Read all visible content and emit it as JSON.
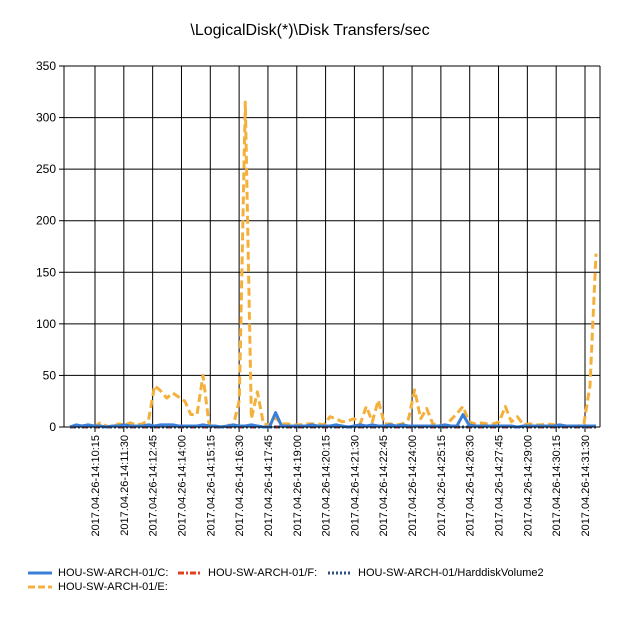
{
  "chart_data": {
    "type": "line",
    "title": "\\LogicalDisk(*)\\Disk Transfers/sec",
    "xlabel": "",
    "ylabel": "",
    "ylim": [
      0,
      350
    ],
    "yticks": [
      0,
      50,
      100,
      150,
      200,
      250,
      300,
      350
    ],
    "grid": true,
    "legend_position": "bottom",
    "x_tick_labels": [
      "2017.04.26-14:10:15",
      "2017.04.26-14:11:30",
      "2017.04.26-14:12:45",
      "2017.04.26-14:14:00",
      "2017.04.26-14:15:15",
      "2017.04.26-14:16:30",
      "2017.04.26-14:17:45",
      "2017.04.26-14:19:00",
      "2017.04.26-14:20:15",
      "2017.04.26-14:21:30",
      "2017.04.26-14:22:45",
      "2017.04.26-14:24:00",
      "2017.04.26-14:25:15",
      "2017.04.26-14:26:30",
      "2017.04.26-14:27:45",
      "2017.04.26-14:29:00",
      "2017.04.26-14:30:15",
      "2017.04.26-14:31:30"
    ],
    "series": [
      {
        "name": "HOU-SW-ARCH-01/C:",
        "color": "#3b7fd9",
        "dash": "solid",
        "values": [
          0,
          2,
          1,
          2,
          1,
          1,
          0,
          1,
          1,
          2,
          1,
          1,
          1,
          2,
          1,
          2,
          2,
          2,
          1,
          1,
          1,
          1,
          2,
          1,
          1,
          0,
          1,
          2,
          1,
          1,
          2,
          1,
          0,
          0,
          14,
          1,
          1,
          1,
          1,
          1,
          2,
          1,
          1,
          1,
          2,
          1,
          0,
          1,
          2,
          1,
          2,
          1,
          1,
          2,
          1,
          2,
          1,
          1,
          1,
          1,
          1,
          1,
          2,
          1,
          1,
          12,
          2,
          1,
          1,
          1,
          1,
          1,
          1,
          1,
          0,
          1,
          1,
          1,
          1,
          1,
          1,
          2,
          1,
          1,
          1,
          1,
          1,
          1
        ]
      },
      {
        "name": "HOU-SW-ARCH-01/F:",
        "color": "#e0401c",
        "dash": "dashdot",
        "values": [
          0,
          0,
          0,
          0,
          0,
          0,
          0,
          0,
          0,
          0,
          0,
          0,
          0,
          0,
          0,
          0,
          0,
          0,
          0,
          0,
          0,
          0,
          0,
          0,
          0,
          0,
          0,
          0,
          0,
          0,
          0,
          0,
          0,
          0,
          0,
          0,
          0,
          0,
          0,
          0,
          0,
          0,
          0,
          0,
          0,
          0,
          0,
          0,
          0,
          0,
          0,
          0,
          0,
          0,
          0,
          0,
          0,
          0,
          0,
          0,
          0,
          0,
          0,
          0,
          0,
          0,
          0,
          0,
          0,
          0,
          0,
          0,
          0,
          0,
          0,
          0,
          0,
          0,
          0,
          0,
          0,
          0,
          0,
          0,
          0,
          0,
          0,
          0
        ]
      },
      {
        "name": "HOU-SW-ARCH-01/HarddiskVolume2",
        "color": "#2f4f7f",
        "dash": "dotted",
        "values": [
          0,
          0,
          0,
          0,
          0,
          0,
          0,
          0,
          0,
          0,
          0,
          0,
          0,
          0,
          0,
          0,
          0,
          0,
          0,
          0,
          0,
          0,
          0,
          0,
          0,
          0,
          0,
          0,
          0,
          0,
          0,
          0,
          0,
          0,
          0,
          0,
          0,
          0,
          0,
          0,
          0,
          0,
          0,
          0,
          0,
          0,
          0,
          0,
          0,
          0,
          0,
          0,
          0,
          0,
          0,
          0,
          0,
          0,
          0,
          0,
          0,
          0,
          0,
          0,
          0,
          0,
          0,
          0,
          0,
          0,
          0,
          0,
          0,
          0,
          0,
          0,
          0,
          0,
          0,
          0,
          0,
          0,
          0,
          0,
          0,
          0,
          0,
          0
        ]
      },
      {
        "name": "HOU-SW-ARCH-01/E:",
        "color": "#f5b03c",
        "dash": "dashed",
        "values": [
          0,
          1,
          0,
          1,
          0,
          4,
          1,
          0,
          3,
          2,
          4,
          2,
          3,
          7,
          40,
          35,
          28,
          33,
          29,
          25,
          12,
          12,
          50,
          2,
          0,
          0,
          2,
          1,
          26,
          315,
          8,
          34,
          3,
          2,
          9,
          3,
          3,
          2,
          2,
          3,
          3,
          3,
          2,
          10,
          8,
          5,
          6,
          8,
          3,
          20,
          5,
          26,
          3,
          3,
          2,
          3,
          8,
          36,
          8,
          18,
          3,
          2,
          1,
          7,
          13,
          20,
          5,
          3,
          4,
          3,
          3,
          5,
          20,
          5,
          10,
          2,
          3,
          2,
          2,
          3,
          2,
          2,
          1,
          1,
          1,
          3,
          40,
          168
        ]
      }
    ]
  }
}
